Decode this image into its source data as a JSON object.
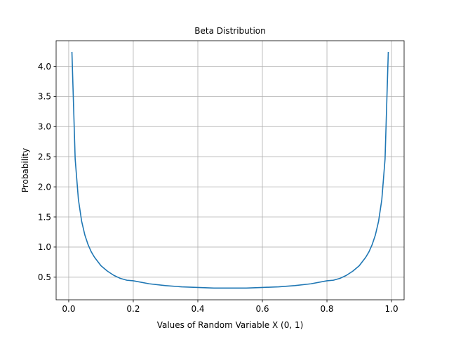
{
  "chart_data": {
    "type": "line",
    "title": "Beta Distribution",
    "xlabel": "Values of Random Variable X (0, 1)",
    "ylabel": "Probability",
    "xlim": [
      -0.039,
      1.039
    ],
    "ylim": [
      0.125,
      4.425
    ],
    "xticks": [
      0.0,
      0.2,
      0.4,
      0.6,
      0.8,
      1.0
    ],
    "xtick_labels": [
      "0.0",
      "0.2",
      "0.4",
      "0.6",
      "0.8",
      "1.0"
    ],
    "yticks": [
      0.5,
      1.0,
      1.5,
      2.0,
      2.5,
      3.0,
      3.5,
      4.0
    ],
    "ytick_labels": [
      "0.5",
      "1.0",
      "1.5",
      "2.0",
      "2.5",
      "3.0",
      "3.5",
      "4.0"
    ],
    "grid": true,
    "color": "#1f77b4",
    "series": [
      {
        "x": [
          0.01,
          0.02,
          0.03,
          0.04,
          0.05,
          0.06,
          0.07,
          0.08,
          0.09,
          0.1,
          0.12,
          0.14,
          0.16,
          0.18,
          0.2,
          0.25,
          0.3,
          0.35,
          0.4,
          0.45,
          0.5,
          0.55,
          0.6,
          0.65,
          0.7,
          0.75,
          0.8,
          0.82,
          0.84,
          0.86,
          0.88,
          0.9,
          0.91,
          0.92,
          0.93,
          0.94,
          0.95,
          0.96,
          0.97,
          0.98,
          0.99
        ],
        "values": [
          4.23,
          2.46,
          1.79,
          1.43,
          1.2,
          1.04,
          0.92,
          0.83,
          0.76,
          0.69,
          0.6,
          0.53,
          0.48,
          0.45,
          0.44,
          0.39,
          0.36,
          0.34,
          0.33,
          0.32,
          0.32,
          0.32,
          0.33,
          0.34,
          0.36,
          0.39,
          0.44,
          0.45,
          0.48,
          0.53,
          0.6,
          0.69,
          0.76,
          0.83,
          0.92,
          1.04,
          1.2,
          1.43,
          1.79,
          2.46,
          4.23
        ]
      }
    ]
  }
}
